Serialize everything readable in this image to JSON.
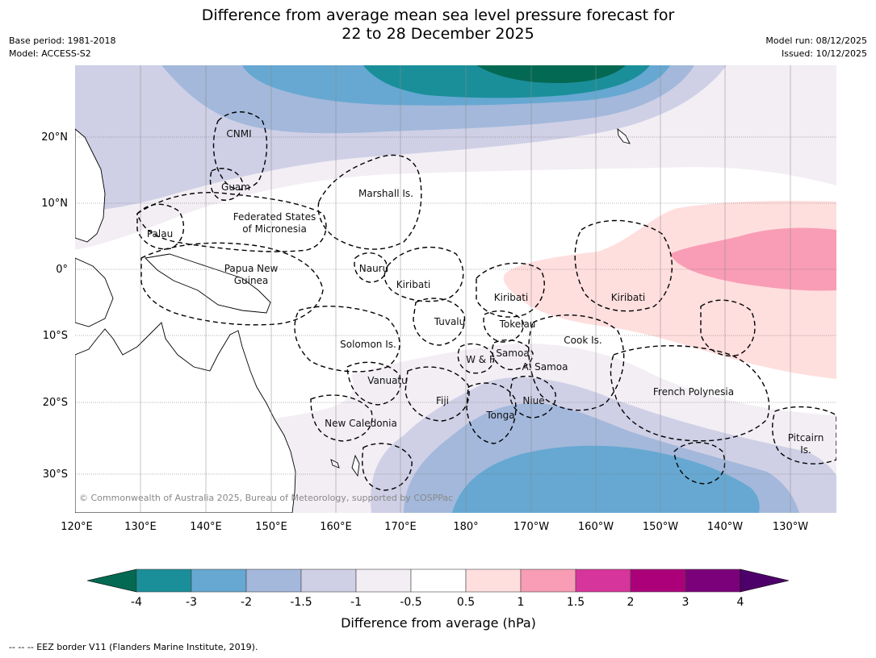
{
  "title": {
    "line1": "Difference from average mean sea level pressure forecast for",
    "line2": "22 to 28 December 2025"
  },
  "meta_left": {
    "base_period": "Base period: 1981-2018",
    "model": "Model: ACCESS-S2"
  },
  "meta_right": {
    "model_run": "Model run: 08/12/2025",
    "issued": "Issued: 10/12/2025"
  },
  "map": {
    "lon_ticks": [
      "120°E",
      "130°E",
      "140°E",
      "150°E",
      "160°E",
      "170°E",
      "180°",
      "170°W",
      "160°W",
      "150°W",
      "140°W",
      "130°W"
    ],
    "lat_ticks": [
      "20°N",
      "10°N",
      "0°",
      "10°S",
      "20°S",
      "30°S"
    ],
    "credit": "© Commonwealth of Australia 2025, Bureau of Meteorology, supported by COSPPac",
    "regions": {
      "cnmi": "CNMI",
      "guam": "Guam",
      "marshall": "Marshall Is.",
      "fsm_1": "Federated States",
      "fsm_2": "of Micronesia",
      "palau": "Palau",
      "png_1": "Papua New",
      "png_2": "Guinea",
      "nauru": "Nauru",
      "kiribati_w": "Kiribati",
      "kiribati_c": "Kiribati",
      "kiribati_e": "Kiribati",
      "tuvalu": "Tuvalu",
      "tokelau": "Tokelau",
      "solomon": "Solomon Is.",
      "wf": "W & F",
      "samoa": "Samoa",
      "asamoa": "A. Samoa",
      "cook": "Cook Is.",
      "vanuatu": "Vanuatu",
      "fiji": "Fiji",
      "niue": "Niue",
      "tonga": "Tonga",
      "fp": "French Polynesia",
      "newcal": "New Caledonia",
      "pitcairn_1": "Pitcairn",
      "pitcairn_2": "Is."
    }
  },
  "colorbar": {
    "title": "Difference from average (hPa)",
    "ticks": [
      "-4",
      "-3",
      "-2",
      "-1.5",
      "-1",
      "-0.5",
      "0.5",
      "1",
      "1.5",
      "2",
      "3",
      "4"
    ],
    "colors": [
      "#046953",
      "#1a8f9a",
      "#66a8d1",
      "#a3b8db",
      "#cfd0e6",
      "#f2eef4",
      "#ffffff",
      "#ffdede",
      "#f89db5",
      "#d6359b",
      "#ab007a",
      "#7a0179",
      "#4d006a"
    ]
  },
  "footer": "--  --  -- EEZ border V11 (Flanders Marine Institute, 2019)."
}
